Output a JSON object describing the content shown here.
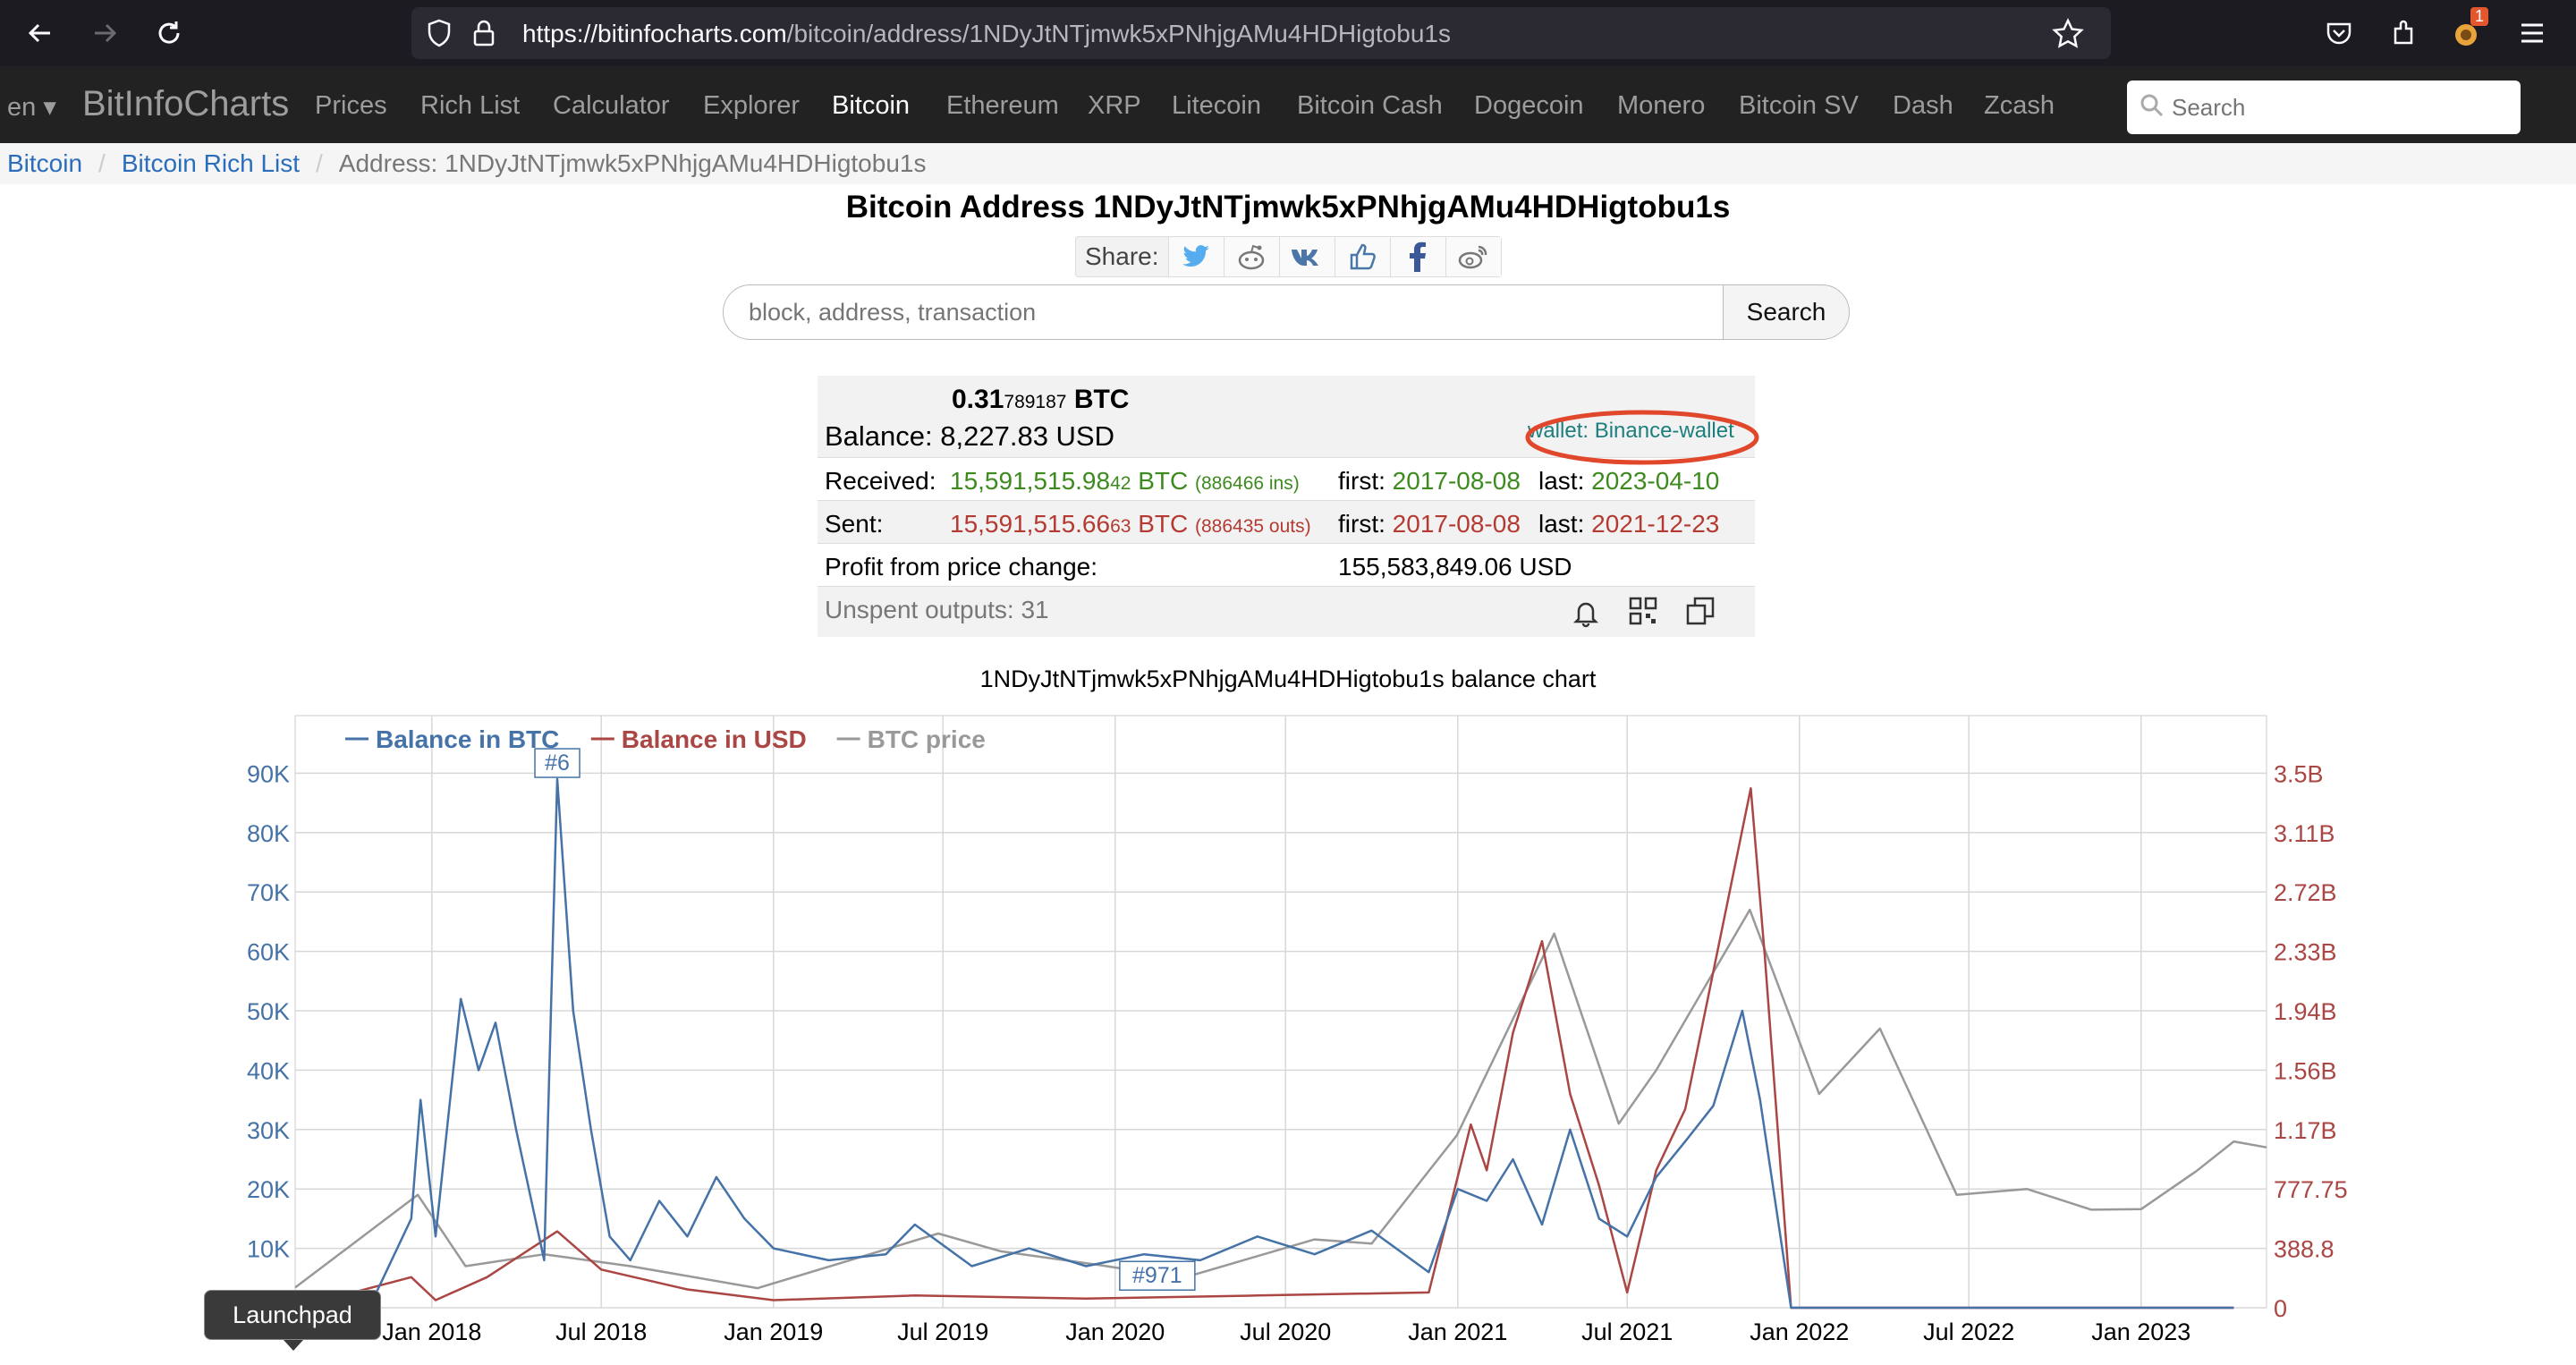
{
  "browser": {
    "url_host": "https://bitinfocharts.com",
    "url_path": "/bitcoin/address/1NDyJtNTjmwk5xPNhjgAMu4HDHigtobu1s",
    "notification_count": "1",
    "colors": {
      "chrome_bg": "#1c1b22",
      "urlbar_bg": "#2b2a33"
    }
  },
  "nav": {
    "lang": "en",
    "brand": "BitInfoCharts",
    "items": [
      "Prices",
      "Rich List",
      "Calculator",
      "Explorer",
      "Bitcoin",
      "Ethereum",
      "XRP",
      "Litecoin",
      "Bitcoin Cash",
      "Dogecoin",
      "Monero",
      "Bitcoin SV",
      "Dash",
      "Zcash"
    ],
    "active": "Bitcoin",
    "search_placeholder": "Search"
  },
  "breadcrumb": {
    "items": [
      "Bitcoin",
      "Bitcoin Rich List"
    ],
    "current": "Address: 1NDyJtNTjmwk5xPNhjgAMu4HDHigtobu1s"
  },
  "title": "Bitcoin Address 1NDyJtNTjmwk5xPNhjgAMu4HDHigtobu1s",
  "share_label": "Share:",
  "search": {
    "placeholder": "block, address, transaction",
    "button": "Search"
  },
  "info": {
    "btc_main": "0.31",
    "btc_small": "789187",
    "btc_unit": "BTC",
    "balance_label": "Balance:",
    "balance_usd": "8,227.83 USD",
    "wallet": "wallet: Binance-wallet",
    "received_label": "Received:",
    "received_main": "15,591,515.98",
    "received_small": "42",
    "received_unit": "BTC",
    "received_count": "(886466 ins)",
    "received_first_label": "first:",
    "received_first": "2017-08-08",
    "received_last_label": "last:",
    "received_last": "2023-04-10",
    "sent_label": "Sent:",
    "sent_main": "15,591,515.66",
    "sent_small": "63",
    "sent_unit": "BTC",
    "sent_count": "(886435 outs)",
    "sent_first_label": "first:",
    "sent_first": "2017-08-08",
    "sent_last_label": "last:",
    "sent_last": "2021-12-23",
    "profit_label": "Profit from price change:",
    "profit_value": "155,583,849.06 USD",
    "unspent": "Unspent outputs: 31"
  },
  "chart_data": {
    "type": "line",
    "title": "1NDyJtNTjmwk5xPNhjgAMu4HDHigtobu1s balance chart",
    "x_ticks": [
      "Jan 2018",
      "Jul 2018",
      "Jan 2019",
      "Jul 2019",
      "Jan 2020",
      "Jul 2020",
      "Jan 2021",
      "Jul 2021",
      "Jan 2022",
      "Jul 2022",
      "Jan 2023"
    ],
    "y_left_ticks": [
      "10K",
      "20K",
      "30K",
      "40K",
      "50K",
      "60K",
      "70K",
      "80K",
      "90K"
    ],
    "y_right_ticks": [
      "0",
      "388.8",
      "777.75",
      "1.17B",
      "1.56B",
      "1.94B",
      "2.33B",
      "2.72B",
      "3.11B",
      "3.5B"
    ],
    "legend": [
      "Balance in BTC",
      "Balance in USD",
      "BTC price"
    ],
    "legend_placement": "top-left",
    "grid": true,
    "colors": {
      "btc": "#4572a7",
      "usd": "#aa4643",
      "price": "#999999"
    },
    "annotations": [
      {
        "label": "#6",
        "x": "2018-05-15",
        "series": "Balance in BTC"
      },
      {
        "label": "#971",
        "x": "2020-02-15",
        "series": "Balance in BTC"
      }
    ],
    "series": [
      {
        "name": "Balance in BTC",
        "points": [
          [
            "2017-08-08",
            0
          ],
          [
            "2017-11-01",
            2000
          ],
          [
            "2017-12-10",
            15000
          ],
          [
            "2017-12-20",
            35000
          ],
          [
            "2018-01-05",
            12000
          ],
          [
            "2018-02-01",
            52000
          ],
          [
            "2018-02-20",
            40000
          ],
          [
            "2018-03-10",
            48000
          ],
          [
            "2018-04-01",
            30000
          ],
          [
            "2018-05-01",
            8000
          ],
          [
            "2018-05-15",
            89000
          ],
          [
            "2018-06-01",
            50000
          ],
          [
            "2018-06-20",
            30000
          ],
          [
            "2018-07-10",
            12000
          ],
          [
            "2018-08-01",
            8000
          ],
          [
            "2018-09-01",
            18000
          ],
          [
            "2018-10-01",
            12000
          ],
          [
            "2018-11-01",
            22000
          ],
          [
            "2018-12-01",
            15000
          ],
          [
            "2019-01-01",
            10000
          ],
          [
            "2019-03-01",
            8000
          ],
          [
            "2019-05-01",
            9000
          ],
          [
            "2019-06-01",
            14000
          ],
          [
            "2019-08-01",
            7000
          ],
          [
            "2019-10-01",
            10000
          ],
          [
            "2019-12-01",
            7000
          ],
          [
            "2020-02-01",
            9000
          ],
          [
            "2020-04-01",
            8000
          ],
          [
            "2020-06-01",
            12000
          ],
          [
            "2020-08-01",
            9000
          ],
          [
            "2020-10-01",
            13000
          ],
          [
            "2020-12-01",
            6000
          ],
          [
            "2021-01-01",
            20000
          ],
          [
            "2021-02-01",
            18000
          ],
          [
            "2021-03-01",
            25000
          ],
          [
            "2021-04-01",
            14000
          ],
          [
            "2021-05-01",
            30000
          ],
          [
            "2021-06-01",
            15000
          ],
          [
            "2021-07-01",
            12000
          ],
          [
            "2021-08-01",
            22000
          ],
          [
            "2021-09-01",
            28000
          ],
          [
            "2021-10-01",
            34000
          ],
          [
            "2021-11-01",
            50000
          ],
          [
            "2021-11-20",
            35000
          ],
          [
            "2021-12-23",
            0
          ],
          [
            "2023-04-10",
            0
          ]
        ]
      },
      {
        "name": "Balance in USD",
        "points": [
          [
            "2017-08-08",
            0
          ],
          [
            "2017-12-10",
            0.2
          ],
          [
            "2018-01-05",
            0.05
          ],
          [
            "2018-03-01",
            0.2
          ],
          [
            "2018-05-15",
            0.5
          ],
          [
            "2018-07-01",
            0.25
          ],
          [
            "2018-10-01",
            0.12
          ],
          [
            "2019-01-01",
            0.05
          ],
          [
            "2019-06-01",
            0.08
          ],
          [
            "2019-12-01",
            0.06
          ],
          [
            "2020-06-01",
            0.08
          ],
          [
            "2020-12-01",
            0.1
          ],
          [
            "2021-01-15",
            1.2
          ],
          [
            "2021-02-01",
            0.9
          ],
          [
            "2021-03-01",
            1.8
          ],
          [
            "2021-04-01",
            2.4
          ],
          [
            "2021-05-01",
            1.4
          ],
          [
            "2021-06-01",
            0.8
          ],
          [
            "2021-07-01",
            0.1
          ],
          [
            "2021-08-01",
            0.9
          ],
          [
            "2021-09-01",
            1.3
          ],
          [
            "2021-10-01",
            2.2
          ],
          [
            "2021-11-10",
            3.4
          ],
          [
            "2021-11-25",
            2.3
          ],
          [
            "2021-12-23",
            0
          ],
          [
            "2023-04-10",
            0
          ]
        ]
      },
      {
        "name": "BTC price",
        "points": [
          [
            "2017-08-08",
            3400
          ],
          [
            "2017-12-17",
            19000
          ],
          [
            "2018-02-06",
            7000
          ],
          [
            "2018-05-01",
            9000
          ],
          [
            "2018-08-01",
            7000
          ],
          [
            "2018-12-15",
            3300
          ],
          [
            "2019-06-26",
            12500
          ],
          [
            "2019-09-01",
            9500
          ],
          [
            "2019-12-15",
            7200
          ],
          [
            "2020-03-13",
            5000
          ],
          [
            "2020-08-01",
            11500
          ],
          [
            "2020-10-01",
            10800
          ],
          [
            "2020-12-31",
            29000
          ],
          [
            "2021-04-14",
            63000
          ],
          [
            "2021-06-22",
            31000
          ],
          [
            "2021-08-01",
            40000
          ],
          [
            "2021-11-09",
            67000
          ],
          [
            "2022-01-22",
            36000
          ],
          [
            "2022-03-28",
            47000
          ],
          [
            "2022-06-18",
            19000
          ],
          [
            "2022-09-01",
            20000
          ],
          [
            "2022-11-09",
            16500
          ],
          [
            "2023-01-01",
            16600
          ],
          [
            "2023-03-01",
            23000
          ],
          [
            "2023-04-10",
            28000
          ],
          [
            "2023-05-15",
            27000
          ]
        ]
      }
    ]
  },
  "launchpad_tooltip": "Launchpad"
}
